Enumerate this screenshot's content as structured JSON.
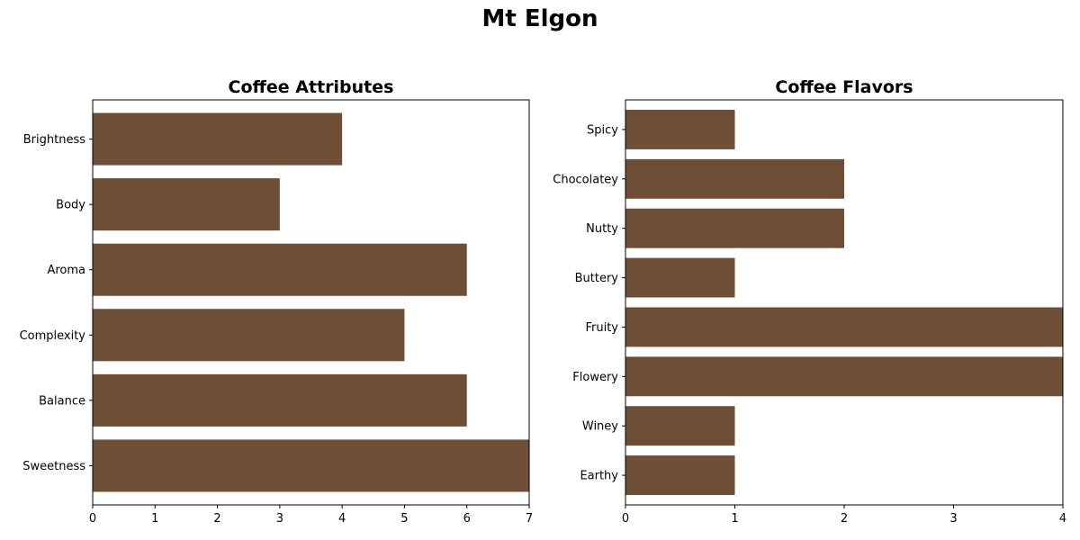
{
  "suptitle": "Mt Elgon",
  "colors": {
    "bar": "#6f4e37",
    "axis": "#000000",
    "background": "#ffffff"
  },
  "chart_data": [
    {
      "type": "bar",
      "orientation": "horizontal",
      "title": "Coffee Attributes",
      "xlabel": "",
      "ylabel": "",
      "categories": [
        "Brightness",
        "Body",
        "Aroma",
        "Complexity",
        "Balance",
        "Sweetness"
      ],
      "values": [
        4,
        3,
        6,
        5,
        6,
        7
      ],
      "xlim": [
        0,
        7
      ],
      "xticks": [
        0,
        1,
        2,
        3,
        4,
        5,
        6,
        7
      ],
      "grid": false
    },
    {
      "type": "bar",
      "orientation": "horizontal",
      "title": "Coffee Flavors",
      "xlabel": "",
      "ylabel": "",
      "categories": [
        "Spicy",
        "Chocolatey",
        "Nutty",
        "Buttery",
        "Fruity",
        "Flowery",
        "Winey",
        "Earthy"
      ],
      "values": [
        1,
        2,
        2,
        1,
        4,
        4,
        1,
        1
      ],
      "xlim": [
        0,
        4
      ],
      "xticks": [
        0,
        1,
        2,
        3,
        4
      ],
      "grid": false
    }
  ]
}
